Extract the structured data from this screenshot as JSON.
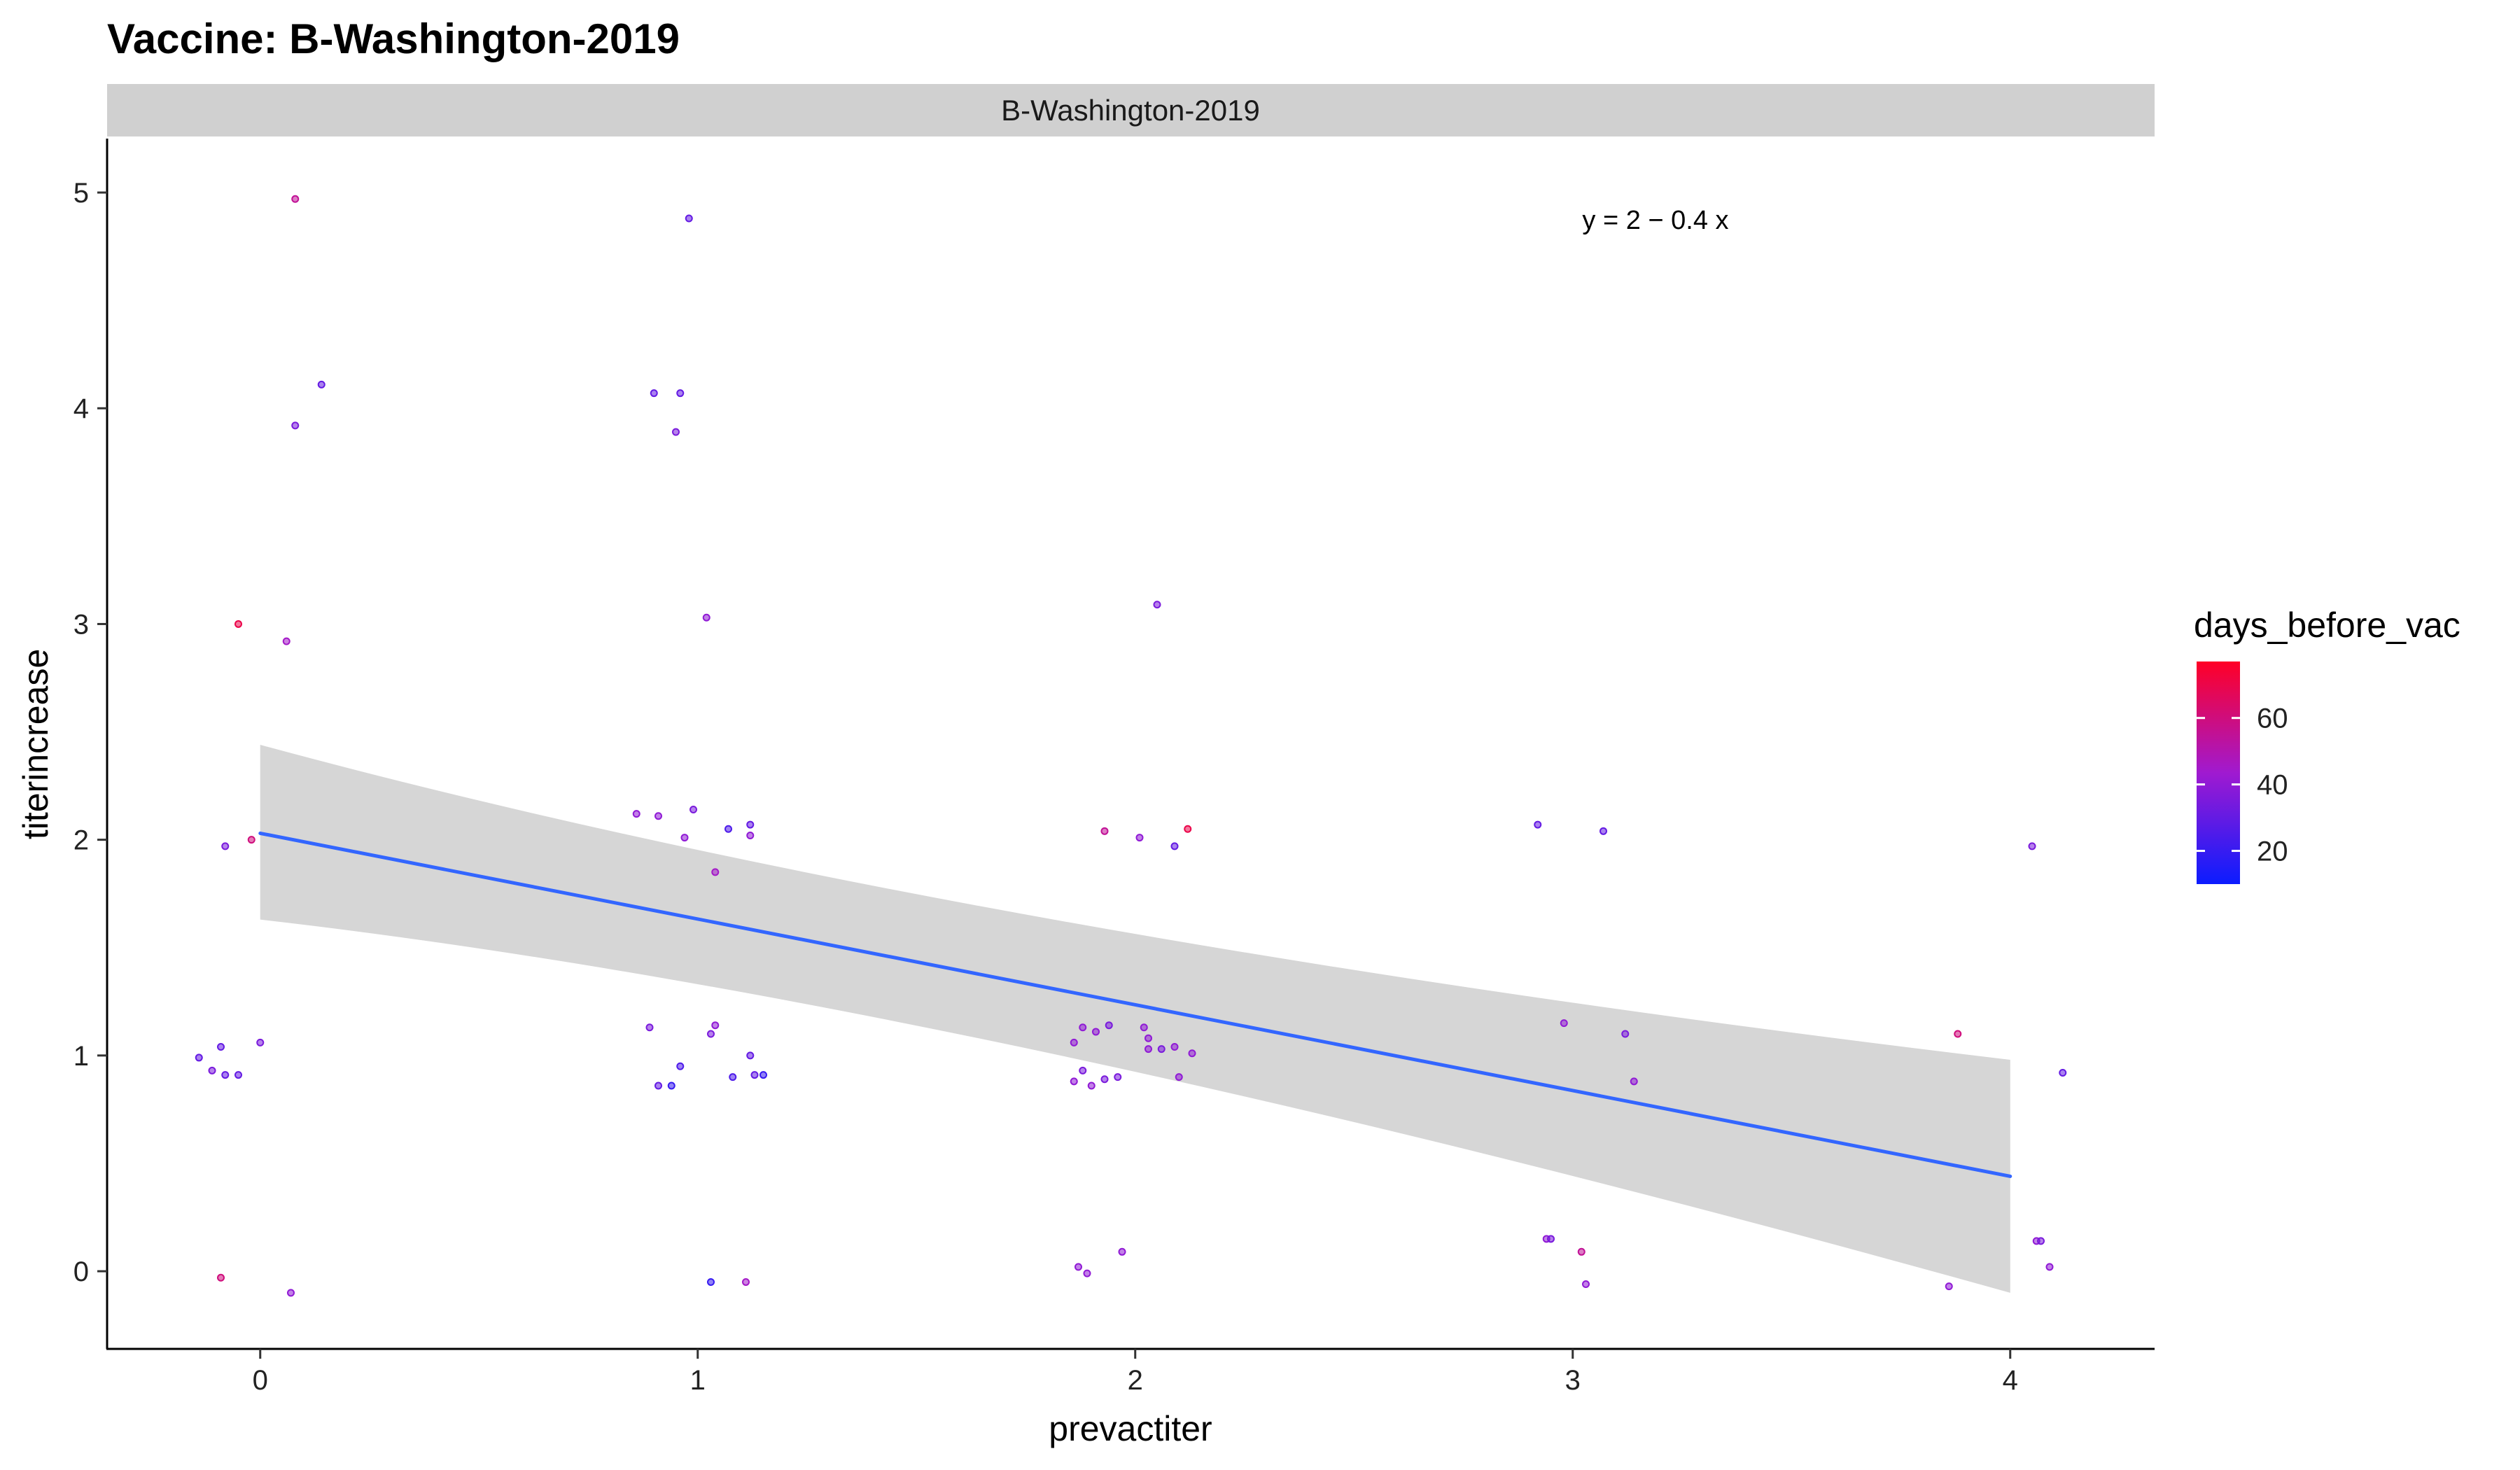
{
  "chart_data": {
    "type": "scatter",
    "title": "Vaccine: B-Washington-2019",
    "facet_label": "B-Washington-2019",
    "xlabel": "prevactiter",
    "ylabel": "titerincrease",
    "xlim": [
      -0.35,
      4.33
    ],
    "ylim": [
      -0.36,
      5.25
    ],
    "x_ticks": [
      0,
      1,
      2,
      3,
      4
    ],
    "y_ticks": [
      0,
      1,
      2,
      3,
      4,
      5
    ],
    "grid": false,
    "legend_position": "right",
    "equation": "y = 2 − 0.4 x",
    "regression": {
      "x": [
        0,
        4
      ],
      "y": [
        2.03,
        0.44
      ],
      "band_lower": [
        1.63,
        -0.1
      ],
      "band_upper": [
        2.44,
        0.98
      ],
      "band_mid_x": 1.6,
      "band_mid_lower": 1.26,
      "band_mid_upper": 1.56,
      "color": "#3366ff",
      "band_color": "#d6d6d6"
    },
    "color_scale": {
      "title": "days_before_vac",
      "low_color": "#0b1cff",
      "mid_color": "#a01ad0",
      "high_color": "#ff0026",
      "min": 10,
      "max": 77,
      "breaks": [
        20,
        40,
        60
      ]
    },
    "points": [
      {
        "x": 0.08,
        "y": 4.97,
        "c": 55
      },
      {
        "x": 0.14,
        "y": 4.11,
        "c": 30
      },
      {
        "x": 0.08,
        "y": 3.92,
        "c": 35
      },
      {
        "x": -0.05,
        "y": 3.0,
        "c": 70
      },
      {
        "x": 0.06,
        "y": 2.92,
        "c": 45
      },
      {
        "x": -0.08,
        "y": 1.97,
        "c": 35
      },
      {
        "x": -0.02,
        "y": 2.0,
        "c": 60
      },
      {
        "x": 0.0,
        "y": 1.06,
        "c": 35
      },
      {
        "x": -0.14,
        "y": 0.99,
        "c": 30
      },
      {
        "x": -0.09,
        "y": 1.04,
        "c": 30
      },
      {
        "x": -0.11,
        "y": 0.93,
        "c": 35
      },
      {
        "x": -0.08,
        "y": 0.91,
        "c": 30
      },
      {
        "x": -0.05,
        "y": 0.91,
        "c": 30
      },
      {
        "x": -0.09,
        "y": -0.03,
        "c": 60
      },
      {
        "x": 0.07,
        "y": -0.1,
        "c": 40
      },
      {
        "x": 0.98,
        "y": 4.88,
        "c": 30
      },
      {
        "x": 0.9,
        "y": 4.07,
        "c": 30
      },
      {
        "x": 0.96,
        "y": 4.07,
        "c": 30
      },
      {
        "x": 0.95,
        "y": 3.89,
        "c": 35
      },
      {
        "x": 1.02,
        "y": 3.03,
        "c": 40
      },
      {
        "x": 0.86,
        "y": 2.12,
        "c": 40
      },
      {
        "x": 0.91,
        "y": 2.11,
        "c": 40
      },
      {
        "x": 0.99,
        "y": 2.14,
        "c": 35
      },
      {
        "x": 0.97,
        "y": 2.01,
        "c": 40
      },
      {
        "x": 1.07,
        "y": 2.05,
        "c": 25
      },
      {
        "x": 1.12,
        "y": 2.07,
        "c": 30
      },
      {
        "x": 1.12,
        "y": 2.02,
        "c": 40
      },
      {
        "x": 1.04,
        "y": 1.85,
        "c": 45
      },
      {
        "x": 0.89,
        "y": 1.13,
        "c": 35
      },
      {
        "x": 1.04,
        "y": 1.14,
        "c": 40
      },
      {
        "x": 1.03,
        "y": 1.1,
        "c": 35
      },
      {
        "x": 1.12,
        "y": 1.0,
        "c": 30
      },
      {
        "x": 0.96,
        "y": 0.95,
        "c": 25
      },
      {
        "x": 1.08,
        "y": 0.9,
        "c": 25
      },
      {
        "x": 1.13,
        "y": 0.91,
        "c": 30
      },
      {
        "x": 1.15,
        "y": 0.91,
        "c": 20
      },
      {
        "x": 0.91,
        "y": 0.86,
        "c": 30
      },
      {
        "x": 0.94,
        "y": 0.86,
        "c": 20
      },
      {
        "x": 1.03,
        "y": -0.05,
        "c": 20
      },
      {
        "x": 1.11,
        "y": -0.05,
        "c": 45
      },
      {
        "x": 2.05,
        "y": 3.09,
        "c": 35
      },
      {
        "x": 1.93,
        "y": 2.04,
        "c": 55
      },
      {
        "x": 2.01,
        "y": 2.01,
        "c": 40
      },
      {
        "x": 2.09,
        "y": 1.97,
        "c": 30
      },
      {
        "x": 2.12,
        "y": 2.05,
        "c": 70
      },
      {
        "x": 1.88,
        "y": 1.13,
        "c": 40
      },
      {
        "x": 1.91,
        "y": 1.11,
        "c": 40
      },
      {
        "x": 1.94,
        "y": 1.14,
        "c": 35
      },
      {
        "x": 1.86,
        "y": 1.06,
        "c": 40
      },
      {
        "x": 2.02,
        "y": 1.13,
        "c": 40
      },
      {
        "x": 2.03,
        "y": 1.08,
        "c": 40
      },
      {
        "x": 2.03,
        "y": 1.03,
        "c": 40
      },
      {
        "x": 2.06,
        "y": 1.03,
        "c": 35
      },
      {
        "x": 2.09,
        "y": 1.04,
        "c": 40
      },
      {
        "x": 2.13,
        "y": 1.01,
        "c": 40
      },
      {
        "x": 1.86,
        "y": 0.88,
        "c": 40
      },
      {
        "x": 1.88,
        "y": 0.93,
        "c": 35
      },
      {
        "x": 1.93,
        "y": 0.89,
        "c": 35
      },
      {
        "x": 1.96,
        "y": 0.9,
        "c": 35
      },
      {
        "x": 1.9,
        "y": 0.86,
        "c": 40
      },
      {
        "x": 2.1,
        "y": 0.9,
        "c": 40
      },
      {
        "x": 1.87,
        "y": 0.02,
        "c": 40
      },
      {
        "x": 1.89,
        "y": -0.01,
        "c": 40
      },
      {
        "x": 1.97,
        "y": 0.09,
        "c": 40
      },
      {
        "x": 2.92,
        "y": 2.07,
        "c": 30
      },
      {
        "x": 3.07,
        "y": 2.04,
        "c": 30
      },
      {
        "x": 2.98,
        "y": 1.15,
        "c": 40
      },
      {
        "x": 3.12,
        "y": 1.1,
        "c": 35
      },
      {
        "x": 3.14,
        "y": 0.88,
        "c": 40
      },
      {
        "x": 2.94,
        "y": 0.15,
        "c": 40
      },
      {
        "x": 2.95,
        "y": 0.15,
        "c": 35
      },
      {
        "x": 3.02,
        "y": 0.09,
        "c": 55
      },
      {
        "x": 3.03,
        "y": -0.06,
        "c": 40
      },
      {
        "x": 4.05,
        "y": 1.97,
        "c": 35
      },
      {
        "x": 3.88,
        "y": 1.1,
        "c": 60
      },
      {
        "x": 4.12,
        "y": 0.92,
        "c": 30
      },
      {
        "x": 4.06,
        "y": 0.14,
        "c": 40
      },
      {
        "x": 4.07,
        "y": 0.14,
        "c": 35
      },
      {
        "x": 4.09,
        "y": 0.02,
        "c": 40
      },
      {
        "x": 3.86,
        "y": -0.07,
        "c": 40
      }
    ]
  }
}
